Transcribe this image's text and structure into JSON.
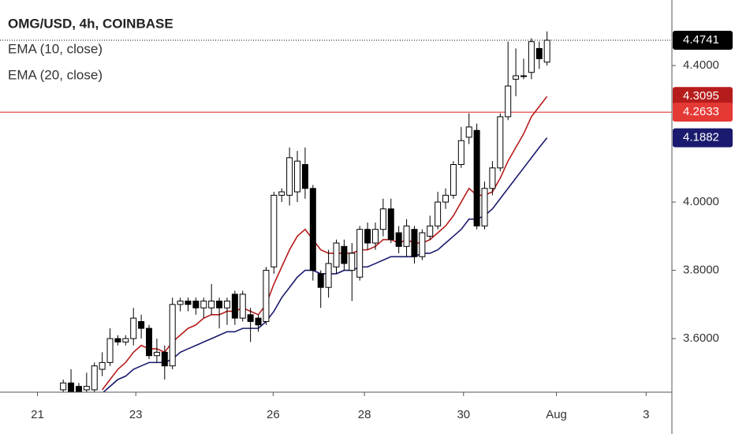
{
  "chart_data": {
    "type": "candlestick",
    "title": "OMG/USD, 4h, COINBASE",
    "open": [
      3.45,
      3.47,
      3.46,
      3.45,
      3.45,
      3.51,
      3.53,
      3.6,
      3.59,
      3.6,
      3.65,
      3.63,
      3.55,
      3.56,
      3.52,
      3.7,
      3.71,
      3.71,
      3.69,
      3.69,
      3.71,
      3.69,
      3.73,
      3.66,
      3.67,
      3.66,
      3.65,
      3.81,
      4.02,
      4.02,
      4.03,
      4.11,
      4.04,
      3.79,
      3.75,
      3.81,
      3.87,
      3.8,
      3.78,
      3.92,
      3.88,
      3.92,
      3.98,
      3.91,
      3.87,
      3.92,
      3.84,
      3.9,
      3.93,
      4.0,
      4.02,
      4.11,
      4.19,
      4.21,
      3.93,
      4.04,
      4.1,
      4.25,
      4.36,
      4.37,
      4.38,
      4.45,
      4.41
    ],
    "high": [
      3.48,
      3.51,
      3.47,
      3.5,
      3.53,
      3.56,
      3.63,
      3.61,
      3.61,
      3.69,
      3.67,
      3.64,
      3.6,
      3.58,
      3.72,
      3.72,
      3.72,
      3.72,
      3.72,
      3.76,
      3.72,
      3.72,
      3.74,
      3.74,
      3.69,
      3.67,
      3.81,
      4.03,
      4.04,
      4.16,
      4.15,
      4.16,
      4.05,
      3.8,
      3.86,
      3.89,
      3.89,
      3.88,
      3.93,
      3.94,
      3.94,
      4.01,
      4.01,
      3.93,
      3.95,
      3.93,
      3.92,
      3.96,
      4.03,
      4.04,
      4.12,
      4.22,
      4.26,
      4.23,
      4.06,
      4.12,
      4.26,
      4.47,
      4.45,
      4.42,
      4.48,
      4.47,
      4.5
    ],
    "low": [
      3.44,
      3.44,
      3.44,
      3.44,
      3.44,
      3.49,
      3.52,
      3.58,
      3.58,
      3.58,
      3.6,
      3.54,
      3.53,
      3.48,
      3.51,
      3.68,
      3.68,
      3.67,
      3.66,
      3.67,
      3.63,
      3.64,
      3.64,
      3.65,
      3.59,
      3.62,
      3.64,
      3.79,
      4.0,
      3.99,
      4.0,
      4.01,
      3.77,
      3.69,
      3.72,
      3.79,
      3.8,
      3.71,
      3.77,
      3.86,
      3.86,
      3.9,
      3.88,
      3.85,
      3.84,
      3.82,
      3.83,
      3.89,
      3.92,
      3.98,
      4.01,
      4.1,
      4.17,
      3.92,
      3.92,
      4.02,
      4.09,
      4.24,
      4.31,
      4.36,
      4.36,
      4.39,
      4.4
    ],
    "close": [
      3.47,
      3.44,
      3.44,
      3.46,
      3.52,
      3.53,
      3.6,
      3.59,
      3.6,
      3.66,
      3.63,
      3.55,
      3.56,
      3.52,
      3.7,
      3.71,
      3.7,
      3.69,
      3.71,
      3.71,
      3.69,
      3.71,
      3.66,
      3.73,
      3.65,
      3.64,
      3.8,
      4.02,
      4.03,
      4.13,
      4.12,
      4.04,
      3.8,
      3.75,
      3.82,
      3.88,
      3.82,
      3.85,
      3.92,
      3.88,
      3.92,
      3.98,
      3.89,
      3.87,
      3.93,
      3.84,
      3.91,
      3.93,
      4.0,
      4.02,
      4.11,
      4.18,
      4.22,
      3.93,
      4.04,
      4.1,
      4.25,
      4.34,
      4.37,
      4.37,
      4.47,
      4.42,
      4.4741
    ],
    "up_color": "#ffffff",
    "down_color": "#000000",
    "wick_color": "#000000",
    "series": [
      {
        "name": "EMA (10, close)",
        "color": "#b71c1c",
        "values": [
          null,
          null,
          null,
          null,
          null,
          3.45,
          3.48,
          3.51,
          3.53,
          3.56,
          3.58,
          3.57,
          3.57,
          3.56,
          3.59,
          3.61,
          3.63,
          3.64,
          3.66,
          3.67,
          3.67,
          3.68,
          3.68,
          3.69,
          3.68,
          3.67,
          3.7,
          3.76,
          3.81,
          3.86,
          3.9,
          3.92,
          3.89,
          3.86,
          3.85,
          3.85,
          3.85,
          3.85,
          3.86,
          3.86,
          3.87,
          3.89,
          3.89,
          3.88,
          3.89,
          3.88,
          3.88,
          3.89,
          3.91,
          3.93,
          3.96,
          4.0,
          4.04,
          4.02,
          4.02,
          4.03,
          4.07,
          4.12,
          4.16,
          4.2,
          4.25,
          4.28,
          4.3095
        ]
      },
      {
        "name": "EMA (20, close)",
        "color": "#1a1a6e",
        "values": [
          null,
          null,
          null,
          null,
          null,
          3.44,
          3.46,
          3.48,
          3.49,
          3.51,
          3.52,
          3.53,
          3.53,
          3.53,
          3.54,
          3.56,
          3.57,
          3.58,
          3.59,
          3.6,
          3.61,
          3.62,
          3.62,
          3.63,
          3.63,
          3.63,
          3.65,
          3.68,
          3.72,
          3.75,
          3.78,
          3.8,
          3.8,
          3.79,
          3.79,
          3.79,
          3.8,
          3.8,
          3.81,
          3.81,
          3.82,
          3.83,
          3.84,
          3.84,
          3.84,
          3.84,
          3.85,
          3.85,
          3.86,
          3.88,
          3.9,
          3.92,
          3.95,
          3.95,
          3.96,
          3.98,
          4.01,
          4.04,
          4.07,
          4.1,
          4.13,
          4.16,
          4.1882
        ]
      }
    ],
    "hline": {
      "value": 4.2633,
      "color": "#e53935"
    },
    "xlim": [
      -8.1,
      78
    ],
    "xticks": [
      {
        "value": -3.3,
        "label": "21"
      },
      {
        "value": 9.3,
        "label": "23"
      },
      {
        "value": 26.9,
        "label": "26"
      },
      {
        "value": 38.6,
        "label": "28"
      },
      {
        "value": 51.3,
        "label": "30"
      },
      {
        "value": 63.2,
        "label": "Aug"
      },
      {
        "value": 74.7,
        "label": "3"
      }
    ],
    "ylim": [
      3.443,
      4.592
    ],
    "yticks": [
      {
        "value": 3.6,
        "label": "3.6000"
      },
      {
        "value": 3.8,
        "label": "3.8000"
      },
      {
        "value": 4.0,
        "label": "4.0000"
      },
      {
        "value": 4.4,
        "label": "4.4000"
      }
    ]
  }
}
